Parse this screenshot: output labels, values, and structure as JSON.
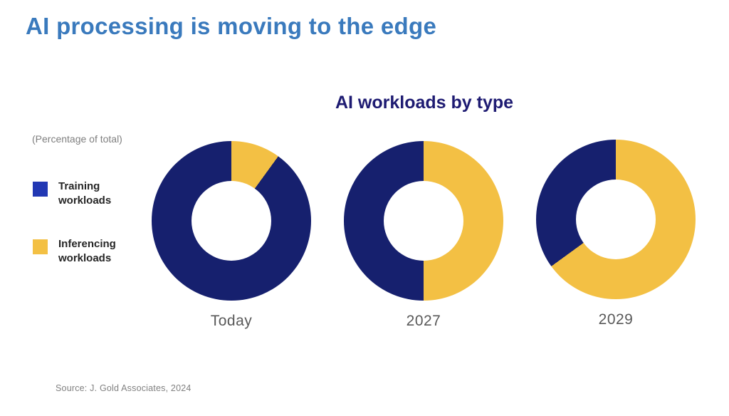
{
  "page": {
    "title": "AI processing is moving to the edge",
    "source": "Source: J. Gold Associates, 2024"
  },
  "chart": {
    "title": "AI workloads by type",
    "note": "(Percentage of total)",
    "legend": [
      {
        "label": "Training workloads",
        "color": "#2238B4"
      },
      {
        "label": "Inferencing workloads",
        "color": "#F3C044"
      }
    ]
  },
  "colors": {
    "page_title_blue": "#3A7ABD",
    "chart_title_navy": "#1E1B72",
    "training_navy": "#16206E",
    "inferencing_gold": "#F3C044",
    "category_label_gray": "#595959",
    "muted_gray": "#7F7F7F"
  },
  "chart_data": {
    "type": "pie",
    "subtype": "donut",
    "title": "AI workloads by type",
    "unit": "Percentage of total",
    "categories": [
      "Today",
      "2027",
      "2029"
    ],
    "series": [
      {
        "name": "Training workloads",
        "color": "#16206E",
        "values": [
          90,
          50,
          35
        ]
      },
      {
        "name": "Inferencing workloads",
        "color": "#F3C044",
        "values": [
          10,
          50,
          65
        ]
      }
    ],
    "start_angle_deg": 0,
    "direction": "clockwise",
    "first_slice": "Inferencing workloads",
    "hole_ratio": 0.5,
    "legend_position": "left"
  }
}
